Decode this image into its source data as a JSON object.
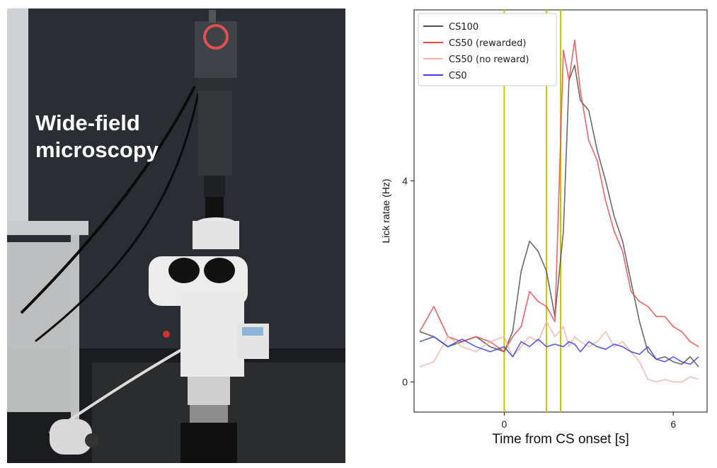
{
  "photo": {
    "caption_line1": "Wide-field",
    "caption_line2": "microscopy",
    "icon": "microscope-photo"
  },
  "chart_data": {
    "type": "line",
    "title": "",
    "xlabel": "Time from CS onset [s]",
    "ylabel": "Lick ratae (Hz)",
    "xlim": [
      -3.2,
      7.2
    ],
    "ylim": [
      -0.6,
      7.4
    ],
    "xticks": [
      0,
      6
    ],
    "xtick_labels": [
      "0",
      "6"
    ],
    "yticks": [
      0,
      4
    ],
    "ytick_labels": [
      "0",
      "4"
    ],
    "grid": false,
    "legend_position": "top-left",
    "vlines": [
      0,
      1.5,
      2.0
    ],
    "vline_color": "#c8c800",
    "series": [
      {
        "name": "CS100",
        "color": "#505050",
        "x": [
          -3.0,
          -2.5,
          -2.0,
          -1.5,
          -1.0,
          -0.5,
          0.0,
          0.3,
          0.6,
          0.9,
          1.2,
          1.5,
          1.8,
          2.1,
          2.3,
          2.5,
          2.7,
          3.0,
          3.3,
          3.6,
          3.9,
          4.2,
          4.5,
          4.8,
          5.1,
          5.4,
          5.7,
          6.0,
          6.3,
          6.6,
          6.9
        ],
        "y": [
          1.0,
          0.9,
          0.7,
          0.8,
          0.9,
          0.7,
          0.6,
          1.0,
          2.2,
          2.8,
          2.6,
          2.2,
          1.3,
          3.0,
          6.0,
          6.3,
          5.6,
          5.4,
          4.6,
          4.0,
          3.3,
          2.8,
          2.0,
          1.2,
          0.6,
          0.45,
          0.5,
          0.4,
          0.35,
          0.5,
          0.3
        ]
      },
      {
        "name": "CS50 (rewarded)",
        "color": "#f04848",
        "x": [
          -3.0,
          -2.5,
          -2.0,
          -1.5,
          -1.0,
          -0.5,
          0.0,
          0.3,
          0.6,
          0.9,
          1.2,
          1.5,
          1.8,
          2.1,
          2.3,
          2.5,
          2.7,
          3.0,
          3.3,
          3.6,
          3.9,
          4.2,
          4.5,
          4.8,
          5.1,
          5.4,
          5.7,
          6.0,
          6.3,
          6.6,
          6.9
        ],
        "y": [
          1.0,
          1.5,
          0.9,
          0.8,
          0.9,
          0.8,
          0.6,
          0.9,
          1.1,
          1.8,
          1.6,
          1.5,
          1.2,
          6.6,
          6.0,
          6.8,
          5.8,
          4.8,
          4.4,
          3.6,
          3.0,
          2.6,
          1.8,
          1.6,
          1.5,
          1.3,
          1.3,
          1.1,
          1.0,
          0.8,
          0.7
        ]
      },
      {
        "name": "CS50 (no reward)",
        "color": "#f2b2a4",
        "x": [
          -3.0,
          -2.5,
          -2.0,
          -1.5,
          -1.0,
          -0.5,
          0.0,
          0.3,
          0.6,
          0.9,
          1.2,
          1.5,
          1.8,
          2.1,
          2.3,
          2.5,
          2.7,
          3.0,
          3.3,
          3.6,
          3.9,
          4.2,
          4.5,
          4.8,
          5.1,
          5.4,
          5.7,
          6.0,
          6.3,
          6.6,
          6.9
        ],
        "y": [
          0.3,
          0.4,
          0.9,
          0.7,
          0.6,
          0.8,
          0.9,
          0.5,
          0.7,
          0.9,
          0.8,
          1.2,
          0.9,
          1.1,
          0.7,
          0.9,
          0.8,
          0.7,
          0.8,
          1.0,
          0.7,
          0.8,
          0.6,
          0.4,
          0.05,
          0.0,
          0.05,
          0.0,
          0.0,
          0.1,
          0.05
        ]
      },
      {
        "name": "CS0",
        "color": "#3c3cf0",
        "x": [
          -3.0,
          -2.5,
          -2.0,
          -1.5,
          -1.0,
          -0.5,
          0.0,
          0.3,
          0.6,
          0.9,
          1.2,
          1.5,
          1.8,
          2.1,
          2.3,
          2.5,
          2.7,
          3.0,
          3.3,
          3.6,
          3.9,
          4.2,
          4.5,
          4.8,
          5.1,
          5.4,
          5.7,
          6.0,
          6.3,
          6.6,
          6.9
        ],
        "y": [
          0.8,
          0.9,
          0.7,
          0.85,
          0.7,
          0.6,
          0.7,
          0.5,
          0.8,
          0.7,
          0.85,
          0.7,
          0.75,
          0.7,
          0.8,
          0.75,
          0.6,
          0.8,
          0.7,
          0.65,
          0.75,
          0.7,
          0.6,
          0.55,
          0.7,
          0.45,
          0.4,
          0.5,
          0.4,
          0.35,
          0.5
        ]
      }
    ]
  }
}
